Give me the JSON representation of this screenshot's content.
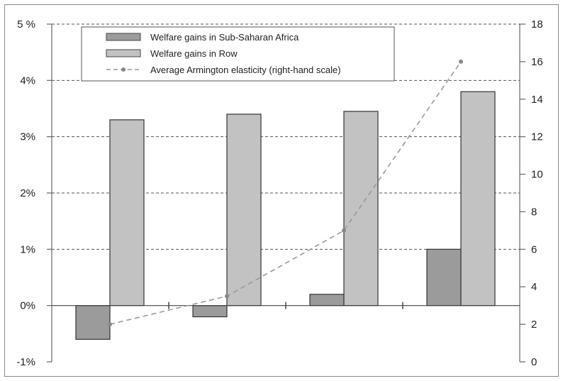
{
  "chart_data": {
    "type": "bar",
    "categories": [
      "",
      "",
      "",
      ""
    ],
    "series": [
      {
        "name": "Welfare gains in Sub-Saharan Africa",
        "values": [
          -0.6,
          -0.2,
          0.2,
          1.0
        ],
        "color": "#9b9b9b",
        "axis": "left"
      },
      {
        "name": "Welfare gains in Row",
        "values": [
          3.3,
          3.4,
          3.45,
          3.8
        ],
        "color": "#c2c2c3",
        "axis": "left"
      }
    ],
    "line_series": {
      "name": "Average Armington elasticity (right-hand scale)",
      "values": [
        2.0,
        3.5,
        7.0,
        16.0
      ],
      "color": "#999999",
      "axis": "right"
    },
    "left_axis": {
      "ylim": [
        -1,
        5
      ],
      "tick_labels": [
        "-1%",
        "0%",
        "1%",
        "2%",
        "3%",
        "4%",
        "5 %"
      ]
    },
    "right_axis": {
      "ylim": [
        0,
        18
      ],
      "tick_labels": [
        "0",
        "2",
        "4",
        "6",
        "8",
        "10",
        "12",
        "14",
        "16",
        "18"
      ]
    },
    "grid": true,
    "legend_position": "top-left"
  }
}
